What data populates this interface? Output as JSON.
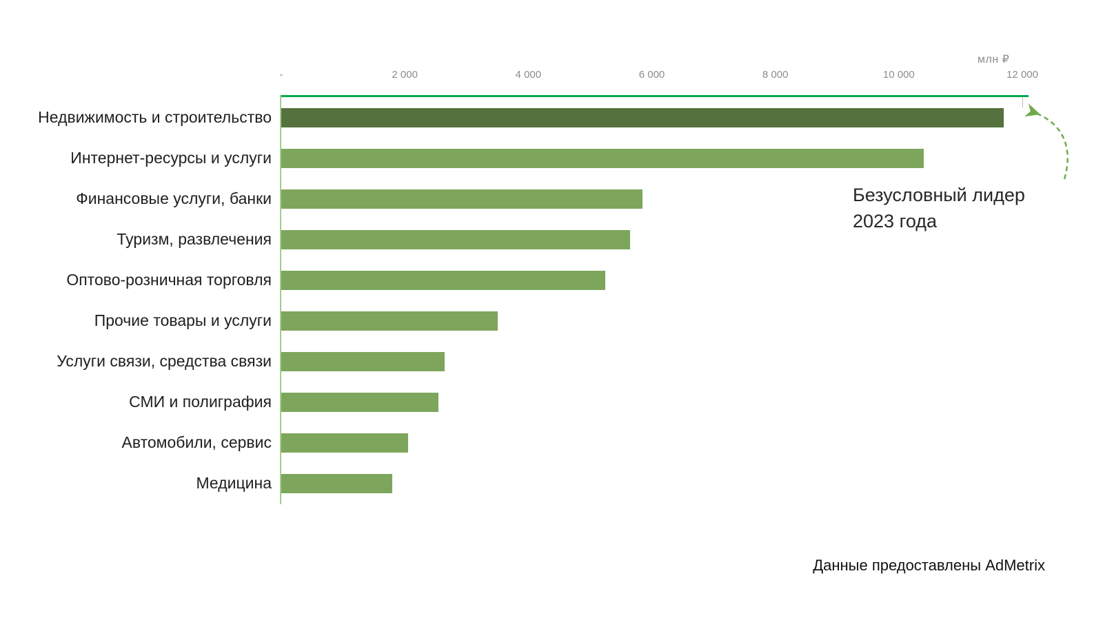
{
  "chart_data": {
    "type": "bar",
    "orientation": "horizontal",
    "title": "",
    "unit_label": "млн ₽",
    "categories": [
      "Недвижимость и строительство",
      "Интернет-ресурсы и услуги",
      "Финансовые услуги, банки",
      "Туризм, развлечения",
      "Оптово-розничная торговля",
      "Прочие товары и услуги",
      "Услуги связи, средства связи",
      "СМИ и полиграфия",
      "Автомобили, сервис",
      "Медицина"
    ],
    "values": [
      11700,
      10400,
      5850,
      5650,
      5250,
      3500,
      2650,
      2550,
      2050,
      1800
    ],
    "xlim": [
      0,
      12000
    ],
    "x_tick_values": [
      0,
      2000,
      4000,
      6000,
      8000,
      10000,
      12000
    ],
    "x_tick_labels": [
      "-",
      "2 000",
      "4 000",
      "6 000",
      "8 000",
      "10 000",
      "12 000"
    ],
    "highlight_index": 0,
    "grid": false,
    "legend": false,
    "colors": {
      "bar": "#7da65c",
      "bar_highlight": "#55713d",
      "axis_line_top": "#00a950",
      "axis_line_left": "#a2cc8a",
      "tick_label": "#8c8c8c",
      "arrow": "#6faa4e"
    }
  },
  "annotation": {
    "line1": "Безусловный лидер",
    "line2": "2023 года"
  },
  "attribution": "Данные предоставлены AdMetrix"
}
